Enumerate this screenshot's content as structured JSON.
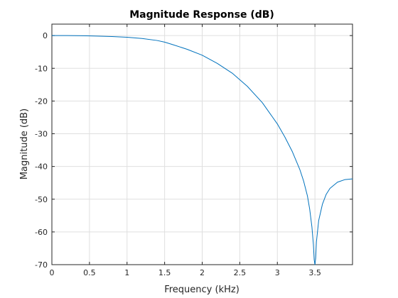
{
  "chart_data": {
    "type": "line",
    "title": "Magnitude Response (dB)",
    "xlabel": "Frequency (kHz)",
    "ylabel": "Magnitude (dB)",
    "xlim": [
      0,
      4
    ],
    "ylim": [
      -70,
      3.5
    ],
    "grid": true,
    "x_ticks": [
      0,
      0.5,
      1,
      1.5,
      2,
      2.5,
      3,
      3.5
    ],
    "x_tick_labels": [
      "0",
      "0.5",
      "1",
      "1.5",
      "2",
      "2.5",
      "3",
      "3.5"
    ],
    "y_ticks": [
      0,
      -10,
      -20,
      -30,
      -40,
      -50,
      -60,
      -70
    ],
    "y_tick_labels": [
      "0",
      "-10",
      "-20",
      "-30",
      "-40",
      "-50",
      "-60",
      "-70"
    ],
    "series": [
      {
        "color": "#0072bd",
        "x": [
          0,
          0.2,
          0.4,
          0.6,
          0.8,
          1.0,
          1.2,
          1.4,
          1.5,
          1.6,
          1.8,
          2.0,
          2.2,
          2.4,
          2.5,
          2.6,
          2.8,
          3.0,
          3.1,
          3.2,
          3.3,
          3.35,
          3.4,
          3.43,
          3.46,
          3.48,
          3.49,
          3.5,
          3.51,
          3.52,
          3.55,
          3.6,
          3.65,
          3.7,
          3.8,
          3.9,
          4.0
        ],
        "y": [
          0,
          0,
          -0.05,
          -0.15,
          -0.3,
          -0.5,
          -0.9,
          -1.5,
          -2.0,
          -2.7,
          -4.2,
          -6.0,
          -8.5,
          -11.5,
          -13.5,
          -15.5,
          -20.5,
          -27.0,
          -31.0,
          -35.5,
          -41.0,
          -44.5,
          -49.0,
          -53.0,
          -58.5,
          -64.0,
          -68.5,
          -70,
          -68.0,
          -63.0,
          -56.5,
          -51.5,
          -48.5,
          -46.7,
          -44.8,
          -44.0,
          -43.8
        ]
      }
    ]
  }
}
